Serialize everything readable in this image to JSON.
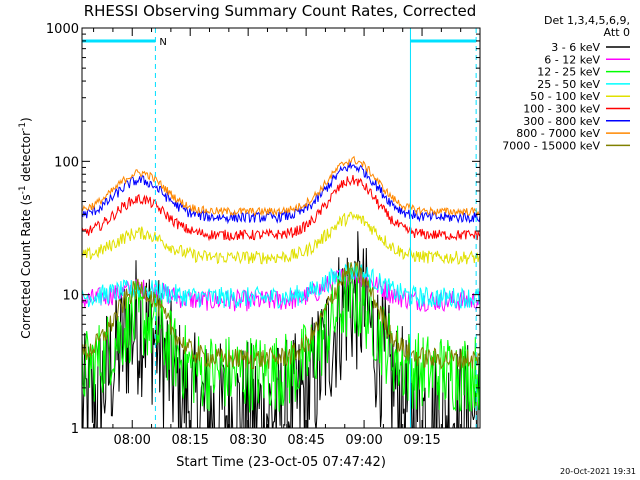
{
  "chart_data": {
    "type": "line",
    "title": "RHESSI Observing Summary Count Rates, Corrected",
    "xlabel": "Start Time (23-Oct-05 07:47:42)",
    "ylabel": "Corrected Count Rate (s",
    "ylabel_sup1": "-1",
    "ylabel_mid": " detector",
    "ylabel_sup2": "-1",
    "ylabel_end": ")",
    "yscale": "log",
    "ylim": [
      1,
      1000
    ],
    "xlim_minutes": [
      -13,
      90
    ],
    "x_ticks": [
      {
        "minute": 0,
        "label": "08:00"
      },
      {
        "minute": 15,
        "label": "08:15"
      },
      {
        "minute": 30,
        "label": "08:30"
      },
      {
        "minute": 45,
        "label": "08:45"
      },
      {
        "minute": 60,
        "label": "09:00"
      },
      {
        "minute": 75,
        "label": "09:15"
      }
    ],
    "y_ticks": [
      {
        "value": 1,
        "label": "1"
      },
      {
        "value": 10,
        "label": "10"
      },
      {
        "value": 100,
        "label": "100"
      },
      {
        "value": 1000,
        "label": "1000"
      }
    ],
    "legend_header": [
      "Det 1,3,4,5,6,9,",
      "Att 0"
    ],
    "legend_position": "right",
    "grid": false,
    "flag_bars": [
      {
        "start_minute": -13,
        "end_minute": 6,
        "label": "N",
        "color": "#00e0ff"
      },
      {
        "start_minute": 72,
        "end_minute": 89,
        "label": "",
        "color": "#00e0ff"
      }
    ],
    "dashed_markers_minutes": [
      6,
      89
    ],
    "solid_markers_minutes": [
      72
    ],
    "series": [
      {
        "name": "3 - 6 keV",
        "color": "#000000",
        "base": 1.3,
        "peak1": 6,
        "peak2": 9,
        "noise": 0.55
      },
      {
        "name": "6 - 12 keV",
        "color": "#ff00ff",
        "base": 9,
        "peak1": 11,
        "peak2": 14,
        "noise": 0.08
      },
      {
        "name": "12 - 25 keV",
        "color": "#00ff00",
        "base": 2.6,
        "peak1": 6.5,
        "peak2": 9,
        "noise": 0.3
      },
      {
        "name": "25 - 50 keV",
        "color": "#00ffff",
        "base": 9.5,
        "peak1": 11,
        "peak2": 15,
        "noise": 0.08
      },
      {
        "name": "50 - 100 keV",
        "color": "#e0e000",
        "base": 19,
        "peak1": 29,
        "peak2": 38,
        "noise": 0.05
      },
      {
        "name": "100 - 300 keV",
        "color": "#ff0000",
        "base": 28,
        "peak1": 52,
        "peak2": 72,
        "noise": 0.04
      },
      {
        "name": "300 - 800 keV",
        "color": "#0000ff",
        "base": 38,
        "peak1": 72,
        "peak2": 92,
        "noise": 0.04
      },
      {
        "name": "800 - 7000 keV",
        "color": "#ff8800",
        "base": 42,
        "peak1": 82,
        "peak2": 102,
        "noise": 0.03
      },
      {
        "name": "7000 - 15000 keV",
        "color": "#808000",
        "base": 3.3,
        "peak1": 11,
        "peak2": 15,
        "noise": 0.08
      }
    ],
    "peak_times_minutes": [
      2,
      57
    ],
    "peak_width_minutes": 9
  },
  "footer_timestamp": "20-Oct-2021 19:31"
}
